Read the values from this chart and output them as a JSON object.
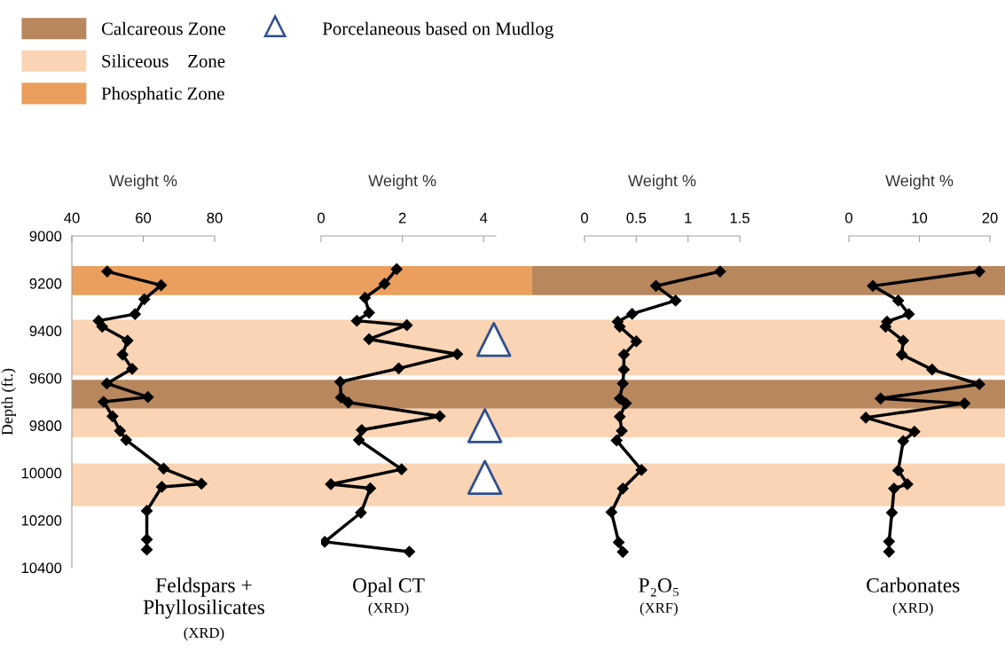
{
  "chart_data": [
    {
      "type": "line",
      "title": "Feldspars +\nPhyllosilicates",
      "subtitle": "(XRD)",
      "xlabel": "Weight %",
      "ylabel": "Depth (ft.)",
      "xlim": [
        40,
        80
      ],
      "xticks": [
        40,
        60,
        80
      ],
      "ylim": [
        10400,
        9000
      ],
      "yticks": [
        9000,
        9200,
        9400,
        9600,
        9800,
        10000,
        10200,
        10400
      ],
      "marker": "diamond",
      "legend": "top left",
      "series": [
        {
          "color": "#000000",
          "x": [
            49.9,
            65,
            60.3,
            57.7,
            47.5,
            48.5,
            55.6,
            54.2,
            56.9,
            49.8,
            61.3,
            48.9,
            51.4,
            53.5,
            55.2,
            65.7,
            76.3,
            65.2,
            61,
            61,
            61
          ],
          "values": [
            9150,
            9208,
            9267,
            9330,
            9358,
            9383,
            9442,
            9501,
            9561,
            9623,
            9680,
            9700,
            9761,
            9823,
            9861,
            9982,
            10046,
            10059,
            10160,
            10281,
            10324
          ]
        }
      ],
      "bands": [
        {
          "axis": "y",
          "from": 9607,
          "to": 9729,
          "label": "Calcareous Zone",
          "color": "#b8875e"
        },
        {
          "axis": "y",
          "from": 9354,
          "to": 9589,
          "label": "Siliceous    Zone",
          "color": "#fad4b4"
        },
        {
          "axis": "y",
          "from": 9127,
          "to": 9250,
          "label": "Phosphatic Zone",
          "color": "#eb9f5e"
        },
        {
          "axis": "y",
          "from": 9729,
          "to": 9850,
          "color": "#fad4b4"
        },
        {
          "axis": "y",
          "from": 9960,
          "to": 10141,
          "color": "#fad4b4"
        }
      ]
    },
    {
      "type": "line",
      "title": "Opal CT",
      "subtitle": "(XRD)",
      "xlabel": "Weight %",
      "xlim": [
        0,
        4.3
      ],
      "xticks": [
        0,
        2,
        4
      ],
      "ylim": [
        10400,
        9000
      ],
      "tick_labels": "x",
      "marker": "diamond",
      "legend": "top",
      "series": [
        {
          "color": "#000000",
          "x": [
            1.86,
            1.56,
            1.08,
            1.18,
            0.88,
            2.11,
            1.18,
            3.35,
            1.91,
            0.47,
            0.49,
            0.67,
            2.92,
            1.0,
            0.93,
            1.98,
            0.24,
            1.21,
            0.98,
            0.09,
            2.17
          ],
          "values": [
            9140,
            9202,
            9261,
            9324,
            9358,
            9377,
            9436,
            9499,
            9559,
            9616,
            9682,
            9703,
            9761,
            9819,
            9861,
            9985,
            10048,
            10065,
            10168,
            10291,
            10333
          ]
        },
        {
          "type": "scatter",
          "name": "Porcelaneous based on Mudlog",
          "color": "#2f4f8f",
          "marker": "triangle",
          "x": [
            4.25,
            4.03,
            4.03
          ],
          "values": [
            9437,
            9801,
            10019
          ]
        }
      ],
      "bands": [
        {
          "axis": "y",
          "from": 9127,
          "to": 9250,
          "color": "#eb9f5e"
        },
        {
          "axis": "y",
          "from": 9354,
          "to": 9589,
          "color": "#fad4b4"
        },
        {
          "axis": "y",
          "from": 9607,
          "to": 9729,
          "color": "#b8875e"
        },
        {
          "axis": "y",
          "from": 9729,
          "to": 9850,
          "color": "#fad4b4"
        },
        {
          "axis": "y",
          "from": 9960,
          "to": 10141,
          "color": "#fad4b4"
        }
      ]
    },
    {
      "type": "line",
      "title": "P₂O₅",
      "subtitle": "(XRF)",
      "xlabel": "Weight %",
      "xlim": [
        0,
        1.5
      ],
      "xticks": [
        0,
        0.5,
        1,
        1.5
      ],
      "ylim": [
        10400,
        9000
      ],
      "tick_labels": "x",
      "marker": "diamond",
      "series": [
        {
          "color": "#000000",
          "x": [
            1.31,
            0.69,
            0.88,
            0.46,
            0.32,
            0.34,
            0.5,
            0.38,
            0.38,
            0.37,
            0.34,
            0.4,
            0.34,
            0.36,
            0.31,
            0.55,
            0.37,
            0.26,
            0.33,
            0.37
          ],
          "values": [
            9150,
            9211,
            9273,
            9329,
            9362,
            9383,
            9445,
            9501,
            9564,
            9623,
            9686,
            9707,
            9763,
            9823,
            9863,
            9988,
            10066,
            10166,
            10293,
            10334
          ]
        }
      ],
      "bands": [
        {
          "axis": "y",
          "from": 9127,
          "to": 9250,
          "color": "#b8875e"
        },
        {
          "axis": "y",
          "from": 9354,
          "to": 9589,
          "color": "#fad4b4"
        },
        {
          "axis": "y",
          "from": 9607,
          "to": 9729,
          "color": "#b8875e"
        },
        {
          "axis": "y",
          "from": 9729,
          "to": 9850,
          "color": "#fad4b4"
        },
        {
          "axis": "y",
          "from": 9960,
          "to": 10141,
          "color": "#fad4b4"
        }
      ]
    },
    {
      "type": "line",
      "title": "Carbonates",
      "subtitle": "(XRD)",
      "xlabel": "Weight %",
      "xlim": [
        0,
        20
      ],
      "xticks": [
        0,
        10,
        20
      ],
      "ylim": [
        10400,
        9000
      ],
      "tick_labels": "x",
      "marker": "diamond",
      "series": [
        {
          "color": "#000000",
          "x": [
            18.5,
            3.4,
            7.0,
            8.5,
            5.4,
            5.2,
            7.7,
            7.5,
            11.8,
            18.5,
            4.5,
            16.4,
            2.4,
            9.3,
            7.7,
            7.0,
            8.3,
            6.4,
            6.1,
            5.7,
            5.7
          ],
          "values": [
            9150,
            9211,
            9273,
            9330,
            9362,
            9383,
            9442,
            9501,
            9564,
            9626,
            9686,
            9707,
            9767,
            9826,
            9866,
            9990,
            10048,
            10066,
            10168,
            10290,
            10333
          ]
        }
      ],
      "bands": [
        {
          "axis": "y",
          "from": 9127,
          "to": 9250,
          "color": "#b8875e"
        },
        {
          "axis": "y",
          "from": 9354,
          "to": 9589,
          "color": "#fad4b4"
        },
        {
          "axis": "y",
          "from": 9607,
          "to": 9729,
          "color": "#b8875e"
        },
        {
          "axis": "y",
          "from": 9729,
          "to": 9850,
          "color": "#fad4b4"
        },
        {
          "axis": "y",
          "from": 9960,
          "to": 10141,
          "color": "#fad4b4"
        }
      ]
    }
  ]
}
